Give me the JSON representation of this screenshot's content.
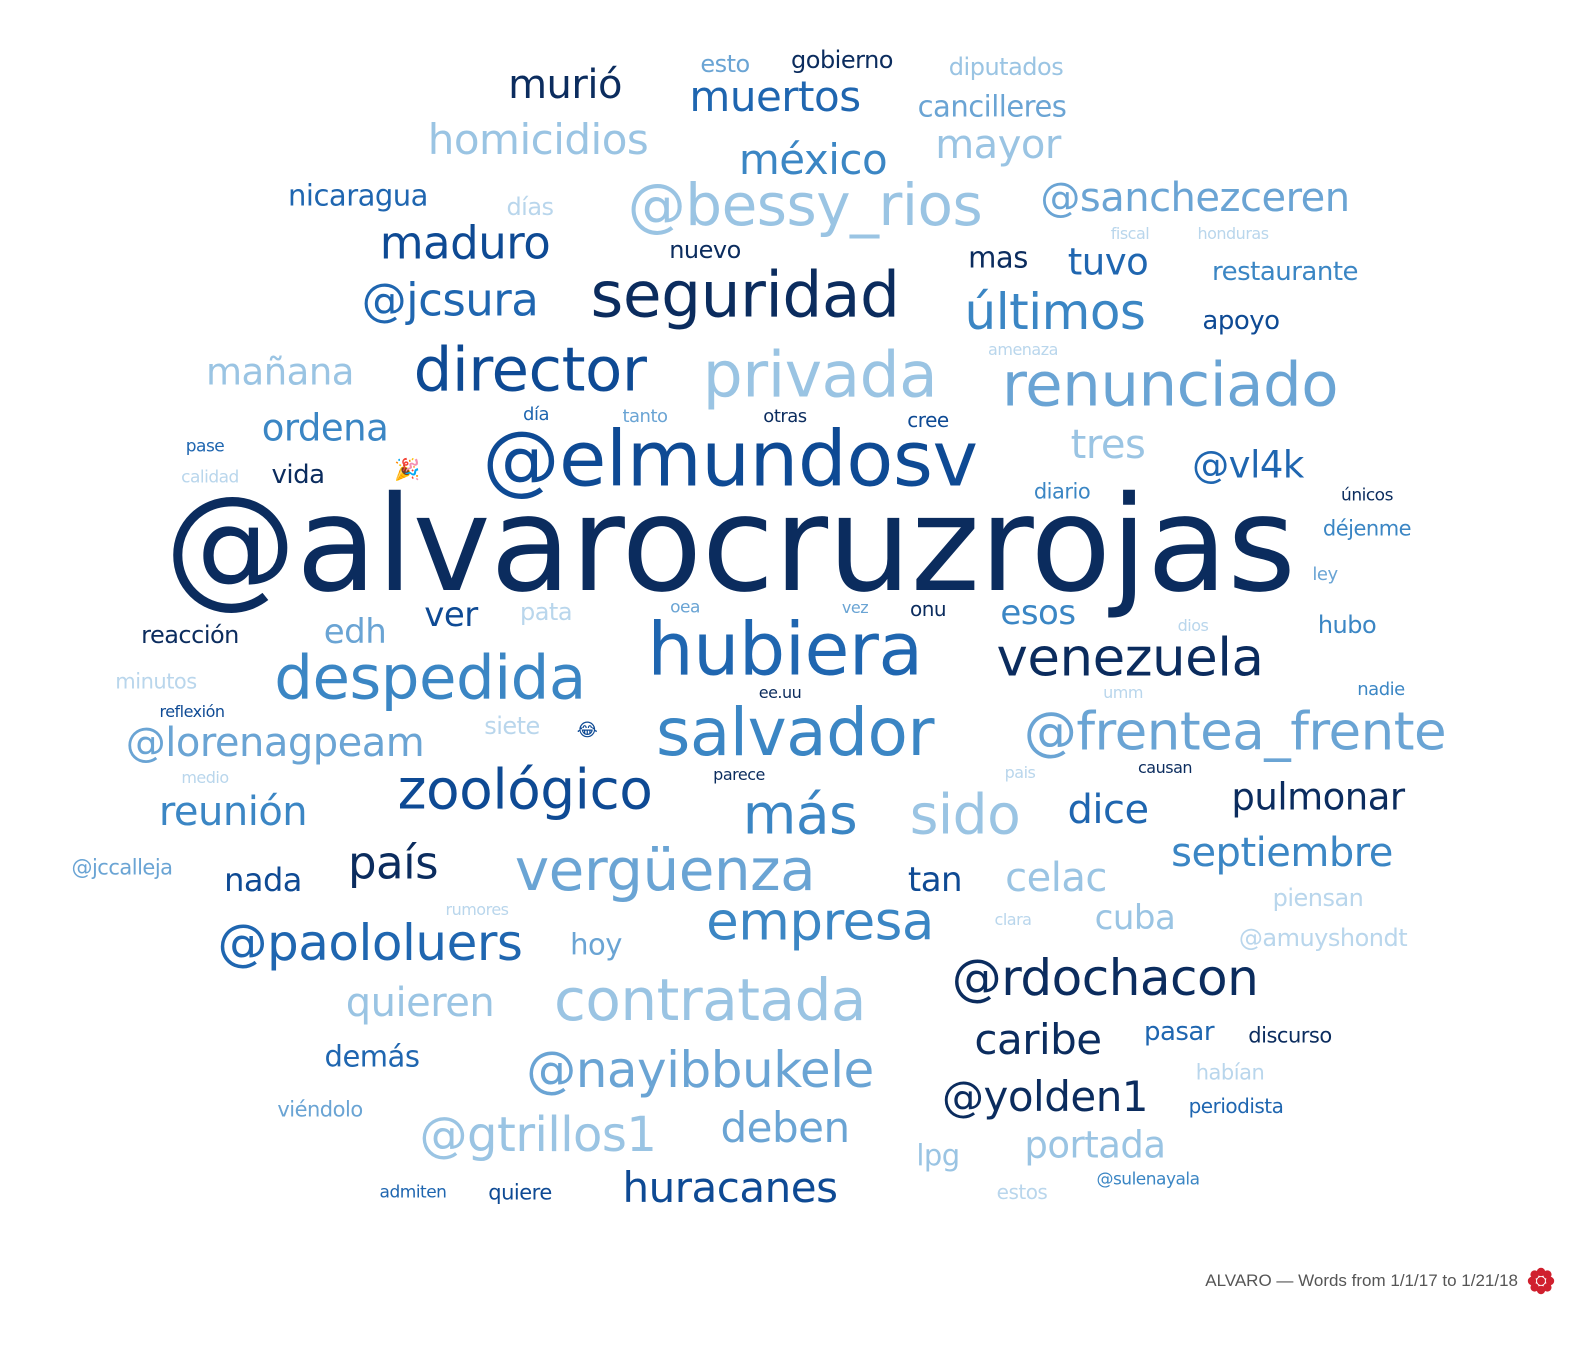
{
  "footer": {
    "caption": "ALVARO — Words from 1/1/17 to 1/21/18",
    "logo_icon": "flower-logo-icon",
    "logo_color": "#d0202e"
  },
  "palette": {
    "c1": "#0b2c5e",
    "c2": "#0e4a94",
    "c3": "#1f66b0",
    "c4": "#3b86c4",
    "c5": "#6aa4d4",
    "c6": "#9ac4e3",
    "c7": "#b9d6ec"
  },
  "words": [
    {
      "text": "@alvarocruzrojas",
      "weight": 100,
      "color": "c1"
    },
    {
      "text": "@elmundosv",
      "weight": 58,
      "color": "c2"
    },
    {
      "text": "hubiera",
      "weight": 55,
      "color": "c3"
    },
    {
      "text": "salvador",
      "weight": 50,
      "color": "c4"
    },
    {
      "text": "seguridad",
      "weight": 48,
      "color": "c1"
    },
    {
      "text": "privada",
      "weight": 48,
      "color": "c6"
    },
    {
      "text": "director",
      "weight": 46,
      "color": "c2"
    },
    {
      "text": "renunciado",
      "weight": 46,
      "color": "c5"
    },
    {
      "text": "despedida",
      "weight": 46,
      "color": "c4"
    },
    {
      "text": "@bessy_rios",
      "weight": 44,
      "color": "c6"
    },
    {
      "text": "vergüenza",
      "weight": 44,
      "color": "c5"
    },
    {
      "text": "contratada",
      "weight": 44,
      "color": "c6"
    },
    {
      "text": "zoológico",
      "weight": 42,
      "color": "c2"
    },
    {
      "text": "más",
      "weight": 42,
      "color": "c4"
    },
    {
      "text": "sido",
      "weight": 42,
      "color": "c6"
    },
    {
      "text": "empresa",
      "weight": 40,
      "color": "c4"
    },
    {
      "text": "venezuela",
      "weight": 40,
      "color": "c1"
    },
    {
      "text": "@frentea_frente",
      "weight": 40,
      "color": "c5"
    },
    {
      "text": "@paololuers",
      "weight": 38,
      "color": "c3"
    },
    {
      "text": "@nayibbukele",
      "weight": 38,
      "color": "c5"
    },
    {
      "text": "@rdochacon",
      "weight": 38,
      "color": "c1"
    },
    {
      "text": "últimos",
      "weight": 38,
      "color": "c4"
    },
    {
      "text": "@gtrillos1",
      "weight": 36,
      "color": "c6"
    },
    {
      "text": "país",
      "weight": 34,
      "color": "c1"
    },
    {
      "text": "@jcsura",
      "weight": 34,
      "color": "c3"
    },
    {
      "text": "maduro",
      "weight": 34,
      "color": "c2"
    },
    {
      "text": "muertos",
      "weight": 32,
      "color": "c3"
    },
    {
      "text": "méxico",
      "weight": 32,
      "color": "c4"
    },
    {
      "text": "homicidios",
      "weight": 32,
      "color": "c6"
    },
    {
      "text": "murió",
      "weight": 30,
      "color": "c1"
    },
    {
      "text": "mayor",
      "weight": 30,
      "color": "c6"
    },
    {
      "text": "@sanchezceren",
      "weight": 30,
      "color": "c5"
    },
    {
      "text": "huracanes",
      "weight": 32,
      "color": "c2"
    },
    {
      "text": "deben",
      "weight": 32,
      "color": "c5"
    },
    {
      "text": "portada",
      "weight": 28,
      "color": "c6"
    },
    {
      "text": "@yolden1",
      "weight": 32,
      "color": "c1"
    },
    {
      "text": "caribe",
      "weight": 32,
      "color": "c1"
    },
    {
      "text": "quieren",
      "weight": 30,
      "color": "c6"
    },
    {
      "text": "@lorenagpeam",
      "weight": 30,
      "color": "c5"
    },
    {
      "text": "reunión",
      "weight": 30,
      "color": "c4"
    },
    {
      "text": "septiembre",
      "weight": 30,
      "color": "c4"
    },
    {
      "text": "celac",
      "weight": 30,
      "color": "c6"
    },
    {
      "text": "dice",
      "weight": 30,
      "color": "c3"
    },
    {
      "text": "pulmonar",
      "weight": 28,
      "color": "c1"
    },
    {
      "text": "tres",
      "weight": 30,
      "color": "c6"
    },
    {
      "text": "@vl4k",
      "weight": 28,
      "color": "c3"
    },
    {
      "text": "tuvo",
      "weight": 28,
      "color": "c3"
    },
    {
      "text": "mañana",
      "weight": 28,
      "color": "c6"
    },
    {
      "text": "ordena",
      "weight": 28,
      "color": "c4"
    },
    {
      "text": "edh",
      "weight": 26,
      "color": "c5"
    },
    {
      "text": "ver",
      "weight": 26,
      "color": "c2"
    },
    {
      "text": "esos",
      "weight": 26,
      "color": "c4"
    },
    {
      "text": "cuba",
      "weight": 26,
      "color": "c6"
    },
    {
      "text": "tan",
      "weight": 26,
      "color": "c2"
    },
    {
      "text": "nada",
      "weight": 24,
      "color": "c2"
    },
    {
      "text": "demás",
      "weight": 22,
      "color": "c3"
    },
    {
      "text": "hoy",
      "weight": 22,
      "color": "c5"
    },
    {
      "text": "lpg",
      "weight": 22,
      "color": "c6"
    },
    {
      "text": "pasar",
      "weight": 20,
      "color": "c3"
    },
    {
      "text": "nicaragua",
      "weight": 22,
      "color": "c3"
    },
    {
      "text": "cancilleres",
      "weight": 22,
      "color": "c5"
    },
    {
      "text": "restaurante",
      "weight": 20,
      "color": "c4"
    },
    {
      "text": "apoyo",
      "weight": 20,
      "color": "c2"
    },
    {
      "text": "mas",
      "weight": 22,
      "color": "c1"
    },
    {
      "text": "nuevo",
      "weight": 18,
      "color": "c1"
    },
    {
      "text": "días",
      "weight": 18,
      "color": "c7"
    },
    {
      "text": "gobierno",
      "weight": 18,
      "color": "c1"
    },
    {
      "text": "esto",
      "weight": 18,
      "color": "c5"
    },
    {
      "text": "diputados",
      "weight": 18,
      "color": "c6"
    },
    {
      "text": "vida",
      "weight": 20,
      "color": "c1"
    },
    {
      "text": "reacción",
      "weight": 18,
      "color": "c1"
    },
    {
      "text": "pata",
      "weight": 18,
      "color": "c7"
    },
    {
      "text": "siete",
      "weight": 18,
      "color": "c7"
    },
    {
      "text": "minutos",
      "weight": 16,
      "color": "c7"
    },
    {
      "text": "hubo",
      "weight": 18,
      "color": "c4"
    },
    {
      "text": "diario",
      "weight": 16,
      "color": "c4"
    },
    {
      "text": "déjenme",
      "weight": 16,
      "color": "c4"
    },
    {
      "text": "piensan",
      "weight": 18,
      "color": "c7"
    },
    {
      "text": "@amuyshondt",
      "weight": 18,
      "color": "c7"
    },
    {
      "text": "@jccalleja",
      "weight": 16,
      "color": "c5"
    },
    {
      "text": "viéndolo",
      "weight": 16,
      "color": "c5"
    },
    {
      "text": "quiere",
      "weight": 16,
      "color": "c2"
    },
    {
      "text": "habían",
      "weight": 16,
      "color": "c7"
    },
    {
      "text": "discurso",
      "weight": 16,
      "color": "c1"
    },
    {
      "text": "periodista",
      "weight": 15,
      "color": "c3"
    },
    {
      "text": "estos",
      "weight": 15,
      "color": "c7"
    },
    {
      "text": "@sulenayala",
      "weight": 13,
      "color": "c4"
    },
    {
      "text": "admiten",
      "weight": 13,
      "color": "c3"
    },
    {
      "text": "nadie",
      "weight": 14,
      "color": "c4"
    },
    {
      "text": "ley",
      "weight": 14,
      "color": "c5"
    },
    {
      "text": "únicos",
      "weight": 13,
      "color": "c1"
    },
    {
      "text": "onu",
      "weight": 15,
      "color": "c1"
    },
    {
      "text": "cree",
      "weight": 15,
      "color": "c2"
    },
    {
      "text": "otras",
      "weight": 14,
      "color": "c1"
    },
    {
      "text": "tanto",
      "weight": 14,
      "color": "c5"
    },
    {
      "text": "día",
      "weight": 14,
      "color": "c3"
    },
    {
      "text": "pase",
      "weight": 13,
      "color": "c3"
    },
    {
      "text": "calidad",
      "weight": 13,
      "color": "c7"
    },
    {
      "text": "oea",
      "weight": 13,
      "color": "c5"
    },
    {
      "text": "vez",
      "weight": 12,
      "color": "c5"
    },
    {
      "text": "dios",
      "weight": 12,
      "color": "c7"
    },
    {
      "text": "umm",
      "weight": 12,
      "color": "c7"
    },
    {
      "text": "ee.uu",
      "weight": 12,
      "color": "c1"
    },
    {
      "text": "reflexión",
      "weight": 12,
      "color": "c2"
    },
    {
      "text": "medio",
      "weight": 12,
      "color": "c7"
    },
    {
      "text": "parece",
      "weight": 12,
      "color": "c1"
    },
    {
      "text": "causan",
      "weight": 12,
      "color": "c1"
    },
    {
      "text": "pais",
      "weight": 12,
      "color": "c7"
    },
    {
      "text": "rumores",
      "weight": 12,
      "color": "c7"
    },
    {
      "text": "clara",
      "weight": 12,
      "color": "c7"
    },
    {
      "text": "fiscal",
      "weight": 12,
      "color": "c7"
    },
    {
      "text": "honduras",
      "weight": 12,
      "color": "c7"
    },
    {
      "text": "amenaza",
      "weight": 12,
      "color": "c7"
    },
    {
      "text": "🎉",
      "weight": 16,
      "color": "c3",
      "emoji": true
    },
    {
      "text": "😂",
      "weight": 14,
      "color": "c2",
      "emoji": true
    }
  ]
}
